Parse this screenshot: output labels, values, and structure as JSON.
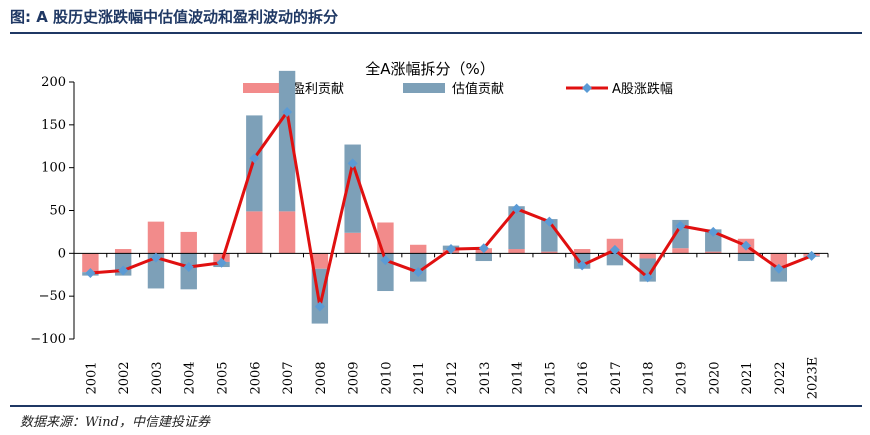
{
  "figure": {
    "title": "图: A 股历史涨跌幅中估值波动和盈利波动的拆分",
    "source": "数据来源：Wind，中信建投证券"
  },
  "colors": {
    "earnings": "#f28b8b",
    "valuation": "#7da0b8",
    "line": "#e01010",
    "marker": "#5b9bd5",
    "rule": "#1f3864"
  },
  "chart_data": {
    "type": "bar",
    "title": "全A涨幅拆分（%）",
    "categories": [
      "2001",
      "2002",
      "2003",
      "2004",
      "2005",
      "2006",
      "2007",
      "2008",
      "2009",
      "2010",
      "2011",
      "2012",
      "2013",
      "2014",
      "2015",
      "2016",
      "2017",
      "2018",
      "2019",
      "2020",
      "2021",
      "2022",
      "2023E"
    ],
    "ylim": [
      -100,
      200
    ],
    "yticks": [
      -100,
      -50,
      0,
      50,
      100,
      150,
      200
    ],
    "ytick_labels": [
      "−100",
      "−50",
      "0",
      "50",
      "100",
      "150",
      "200"
    ],
    "legend": [
      "盈利贡献",
      "估值贡献",
      "A股涨跌幅"
    ],
    "legend_position": "top",
    "grid": false,
    "series": [
      {
        "name": "盈利贡献",
        "type": "bar",
        "values": [
          -22,
          5,
          37,
          25,
          -10,
          49,
          49,
          -18,
          24,
          36,
          10,
          4,
          6,
          5,
          2,
          5,
          17,
          -6,
          6,
          2,
          17,
          -15,
          -3
        ]
      },
      {
        "name": "估值贡献",
        "type": "bar",
        "values": [
          -4,
          -26,
          -41,
          -42,
          -6,
          112,
          164,
          -64,
          103,
          -44,
          -33,
          5,
          -9,
          50,
          38,
          -18,
          -14,
          -27,
          33,
          26,
          -9,
          -18,
          -1
        ]
      },
      {
        "name": "A股涨跌幅",
        "type": "line",
        "values": [
          -23,
          -20,
          -5,
          -16,
          -11,
          111,
          165,
          -62,
          105,
          -8,
          -22,
          5,
          6,
          52,
          37,
          -14,
          4,
          -28,
          32,
          25,
          9,
          -18,
          -3
        ]
      }
    ]
  }
}
